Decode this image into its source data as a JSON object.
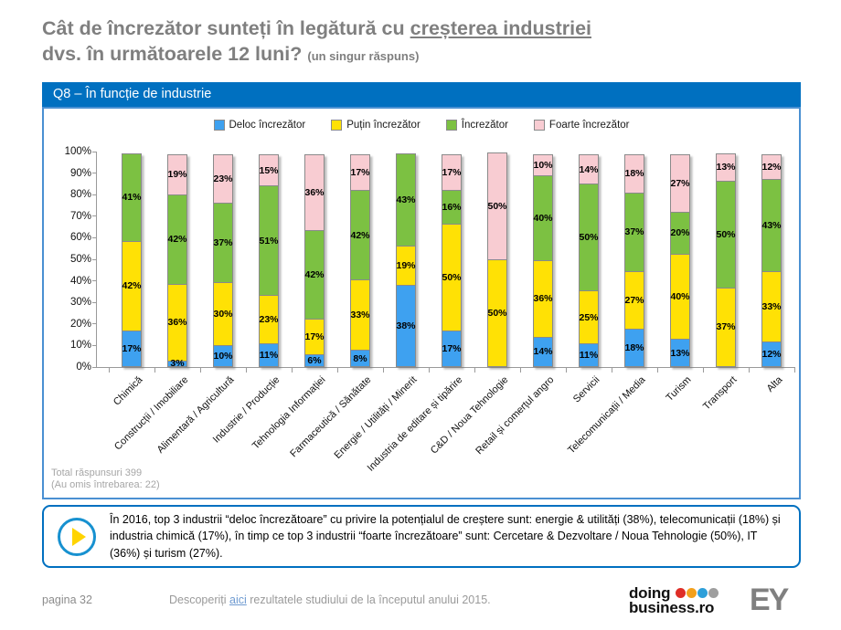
{
  "slide": {
    "title_line1_prefix": "Cât de încrezător sunteți în legătură cu ",
    "title_line1_underlined": "creșterea industriei",
    "title_line2": "dvs. în următoarele 12 luni?",
    "title_suffix": "(un singur răspuns)",
    "section_header": "Q8 – În funcție de industrie"
  },
  "chart_data": {
    "type": "bar",
    "stacked": true,
    "title": "Q8 – În funcție de industrie",
    "xlabel": "",
    "ylabel": "",
    "ylim": [
      0,
      100
    ],
    "grid": false,
    "legend_position": "top",
    "y_ticks": [
      "0%",
      "10%",
      "20%",
      "30%",
      "40%",
      "50%",
      "60%",
      "70%",
      "80%",
      "90%",
      "100%"
    ],
    "categories": [
      "Chimică",
      "Construcții / Imobiliare",
      "Alimentară / Agricultură",
      "Industrie / Producție",
      "Tehnologia Informației",
      "Farmaceutică / Sănătate",
      "Energie / Utilități / Minerit",
      "Industria de editare și tipărire",
      "C&D / Noua Tehnologie",
      "Retail și comerțul angro",
      "Servicii",
      "Telecomunicații / Media",
      "Turism",
      "Transport",
      "Alta"
    ],
    "series": [
      {
        "name": "Deloc încrezător",
        "color": "#3ea1f0",
        "values": [
          17,
          3,
          10,
          11,
          6,
          8,
          38,
          17,
          0,
          14,
          11,
          18,
          13,
          0,
          12
        ]
      },
      {
        "name": "Puțin încrezător",
        "color": "#ffe105",
        "values": [
          42,
          36,
          30,
          23,
          17,
          33,
          19,
          50,
          50,
          36,
          25,
          27,
          40,
          37,
          33
        ]
      },
      {
        "name": "Încrezător",
        "color": "#7cc142",
        "values": [
          41,
          42,
          37,
          51,
          42,
          42,
          43,
          16,
          0,
          40,
          50,
          37,
          20,
          50,
          43
        ]
      },
      {
        "name": "Foarte încrezător",
        "color": "#f8ccd2",
        "values": [
          0,
          19,
          23,
          15,
          36,
          17,
          0,
          17,
          50,
          10,
          14,
          18,
          27,
          13,
          12
        ]
      }
    ]
  },
  "footnote": {
    "line1": "Total răspunsuri 399",
    "line2": "(Au omis întrebarea: 22)"
  },
  "callout": {
    "text": "În 2016, top 3 industrii “deloc încrezătoare” cu privire la potențialul de creștere sunt: energie & utilități (38%), telecomunicații (18%) și industria chimică (17%), în timp ce top 3 industrii “foarte încrezătoare” sunt: Cercetare & Dezvoltare / Noua Tehnologie (50%), IT (36%) și turism (27%)."
  },
  "footer": {
    "page": "pagina 32",
    "link_prefix": "Descoperiți ",
    "link_text": "aici",
    "link_suffix": " rezultatele studiului de la începutul anului 2015.",
    "logo_doing": "doing",
    "logo_business": "business.ro",
    "logo_dots": [
      "#df2e27",
      "#f3a01c",
      "#2e9fd9",
      "#9e9e9e"
    ],
    "logo_ey": "EY"
  }
}
